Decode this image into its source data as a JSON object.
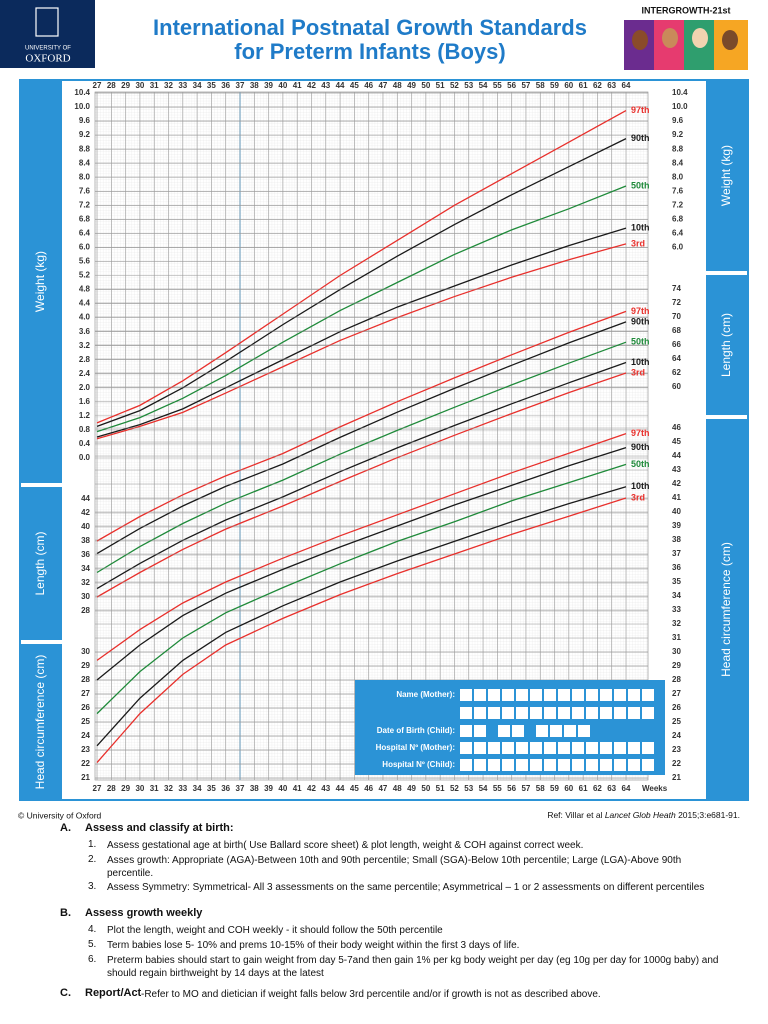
{
  "header": {
    "university_line1": "UNIVERSITY OF",
    "university_line2": "OXFORD",
    "title_line1": "International Postnatal Growth Standards",
    "title_line2": "for Preterm Infants (Boys)",
    "logo_text": "INTERGROWTH-21st"
  },
  "chart_data": [
    {
      "type": "line",
      "y_label": "Weight (kg)",
      "x_label": "Weeks",
      "x": [
        27,
        30,
        33,
        36,
        40,
        44,
        48,
        52,
        56,
        60,
        64
      ],
      "xlim": [
        27,
        64
      ],
      "xticks": [
        27,
        28,
        29,
        30,
        31,
        32,
        33,
        34,
        35,
        36,
        37,
        38,
        39,
        40,
        41,
        42,
        43,
        44,
        45,
        46,
        47,
        48,
        49,
        50,
        51,
        52,
        53,
        54,
        55,
        56,
        57,
        58,
        59,
        60,
        61,
        62,
        63,
        64
      ],
      "ylim": [
        0,
        10.4
      ],
      "yticks": [
        {
          "value": 0,
          "label": "0.0"
        },
        0.4,
        0.8,
        1.2,
        1.6,
        {
          "value": 2,
          "label": "2.0"
        },
        2.4,
        2.8,
        3.2,
        3.6,
        {
          "value": 4,
          "label": "4.0"
        },
        4.4,
        4.8,
        5.2,
        5.6,
        {
          "value": 6,
          "label": "6.0"
        },
        6.4,
        6.8,
        7.2,
        7.6,
        {
          "value": 8,
          "label": "8.0"
        },
        8.4,
        8.8,
        9.2,
        9.6,
        {
          "value": 10,
          "label": "10.0"
        },
        10.4
      ],
      "y2ticks": [
        {
          "value": 6,
          "label": "6.0"
        },
        6.4,
        6.8,
        7.2,
        7.6,
        {
          "value": 8,
          "label": "8.0"
        },
        8.4,
        8.8,
        9.2,
        9.6,
        {
          "value": 10,
          "label": "10.0"
        },
        10.4
      ],
      "series": [
        {
          "name": "97th",
          "color": "#e8302c",
          "values": [
            1.0,
            1.5,
            2.2,
            3.0,
            4.1,
            5.2,
            6.2,
            7.2,
            8.1,
            9.0,
            9.9
          ]
        },
        {
          "name": "90th",
          "color": "#1a1a1a",
          "values": [
            0.9,
            1.35,
            2.0,
            2.75,
            3.8,
            4.8,
            5.75,
            6.65,
            7.5,
            8.3,
            9.1
          ]
        },
        {
          "name": "50th",
          "color": "#1f8a3a",
          "values": [
            0.75,
            1.15,
            1.7,
            2.35,
            3.3,
            4.2,
            5.0,
            5.8,
            6.5,
            7.1,
            7.75
          ]
        },
        {
          "name": "10th",
          "color": "#1a1a1a",
          "values": [
            0.6,
            0.95,
            1.4,
            2.0,
            2.8,
            3.6,
            4.3,
            4.9,
            5.5,
            6.05,
            6.55
          ]
        },
        {
          "name": "3rd",
          "color": "#e8302c",
          "values": [
            0.55,
            0.9,
            1.3,
            1.85,
            2.6,
            3.35,
            4.0,
            4.6,
            5.15,
            5.65,
            6.1
          ]
        }
      ]
    },
    {
      "type": "line",
      "y_label": "Length (cm)",
      "x": [
        27,
        30,
        33,
        36,
        40,
        44,
        48,
        52,
        56,
        60,
        64
      ],
      "ylim": [
        28,
        74
      ],
      "yticks": [
        28,
        30,
        32,
        34,
        36,
        38,
        40,
        42,
        44
      ],
      "y2ticks": [
        60,
        62,
        64,
        66,
        68,
        70,
        72,
        74
      ],
      "series": [
        {
          "name": "97th",
          "color": "#e8302c",
          "values": [
            38.0,
            41.5,
            44.6,
            47.3,
            50.5,
            54.3,
            57.9,
            61.3,
            64.6,
            67.8,
            70.8
          ]
        },
        {
          "name": "90th",
          "color": "#1a1a1a",
          "values": [
            36.2,
            39.8,
            43.0,
            45.8,
            49.0,
            52.8,
            56.4,
            59.8,
            63.1,
            66.3,
            69.3
          ]
        },
        {
          "name": "50th",
          "color": "#1f8a3a",
          "values": [
            33.5,
            37.2,
            40.5,
            43.4,
            46.7,
            50.4,
            53.8,
            57.1,
            60.3,
            63.4,
            66.4
          ]
        },
        {
          "name": "10th",
          "color": "#1a1a1a",
          "values": [
            31.2,
            34.8,
            38.1,
            41.0,
            44.3,
            47.9,
            51.3,
            54.5,
            57.6,
            60.6,
            63.5
          ]
        },
        {
          "name": "3rd",
          "color": "#e8302c",
          "values": [
            30.0,
            33.5,
            36.8,
            39.7,
            43.0,
            46.5,
            49.9,
            53.1,
            56.2,
            59.2,
            62.0
          ]
        }
      ]
    },
    {
      "type": "line",
      "y_label": "Head circumference (cm)",
      "x": [
        27,
        30,
        33,
        36,
        40,
        44,
        48,
        52,
        56,
        60,
        64
      ],
      "ylim": [
        21,
        46
      ],
      "yticks": [
        21,
        22,
        23,
        24,
        25,
        26,
        27,
        28,
        29,
        30
      ],
      "y2ticks": [
        21,
        22,
        23,
        24,
        25,
        26,
        27,
        28,
        29,
        30,
        31,
        32,
        33,
        34,
        35,
        36,
        37,
        38,
        39,
        40,
        41,
        42,
        43,
        44,
        45,
        46
      ],
      "series": [
        {
          "name": "97th",
          "color": "#e8302c",
          "values": [
            29.4,
            31.6,
            33.5,
            35.0,
            36.7,
            38.3,
            39.8,
            41.3,
            42.8,
            44.2,
            45.6
          ]
        },
        {
          "name": "90th",
          "color": "#1a1a1a",
          "values": [
            28.0,
            30.5,
            32.6,
            34.2,
            35.9,
            37.5,
            39.0,
            40.5,
            41.9,
            43.3,
            44.6
          ]
        },
        {
          "name": "50th",
          "color": "#1f8a3a",
          "values": [
            25.6,
            28.6,
            31.0,
            32.8,
            34.6,
            36.3,
            37.9,
            39.3,
            40.8,
            42.1,
            43.4
          ]
        },
        {
          "name": "10th",
          "color": "#1a1a1a",
          "values": [
            23.3,
            26.7,
            29.4,
            31.4,
            33.3,
            35.0,
            36.5,
            37.9,
            39.3,
            40.6,
            41.8
          ]
        },
        {
          "name": "3rd",
          "color": "#e8302c",
          "values": [
            22.1,
            25.6,
            28.4,
            30.5,
            32.4,
            34.1,
            35.6,
            37.0,
            38.4,
            39.7,
            41.0
          ]
        }
      ]
    }
  ],
  "form": {
    "fields": [
      "Name (Mother):",
      "Date of Birth (Child):",
      "Hospital Nº (Mother):",
      "Hospital Nº (Child):"
    ]
  },
  "footer": {
    "copyright": "© University of Oxford",
    "ref_prefix": "Ref: Villar et al",
    "ref_journal": "Lancet Glob Heath",
    "ref_suffix": "2015;3:e681-91."
  },
  "notes": {
    "sections": [
      {
        "letter": "A.",
        "heading": "Assess and classify at birth:",
        "items": [
          {
            "num": "1.",
            "text": "Assess gestational age at birth( Use Ballard score sheet) & plot length, weight & COH against correct week."
          },
          {
            "num": "2.",
            "text": "Asses growth: Appropriate (AGA)-Between 10th and 90th percentile; Small (SGA)-Below 10th percentile; Large (LGA)-Above 90th percentile."
          },
          {
            "num": "3.",
            "text": "Assess Symmetry:  Symmetrical- All 3 assessments on the same percentile; Asymmetrical – 1 or 2 assessments on different percentiles"
          }
        ]
      },
      {
        "letter": "B.",
        "heading": "Assess growth weekly",
        "items": [
          {
            "num": "4.",
            "text": "Plot the length, weight and COH weekly  - it should follow the 50th percentile"
          },
          {
            "num": "5.",
            "text": "Term babies lose 5- 10%  and prems 10-15% of their body weight within the first 3 days of life."
          },
          {
            "num": "6.",
            "text": "Preterm babies should start to gain weight from day 5-7and then gain 1% per kg body weight  per day (eg 10g per day for 1000g baby) and should regain birthweight by 14 days at the latest"
          }
        ]
      },
      {
        "letter": "C.",
        "heading": "Report/Act",
        "text": "-Refer to MO and dietician if weight falls below 3rd percentile and/or if growth is not as described above."
      }
    ]
  }
}
